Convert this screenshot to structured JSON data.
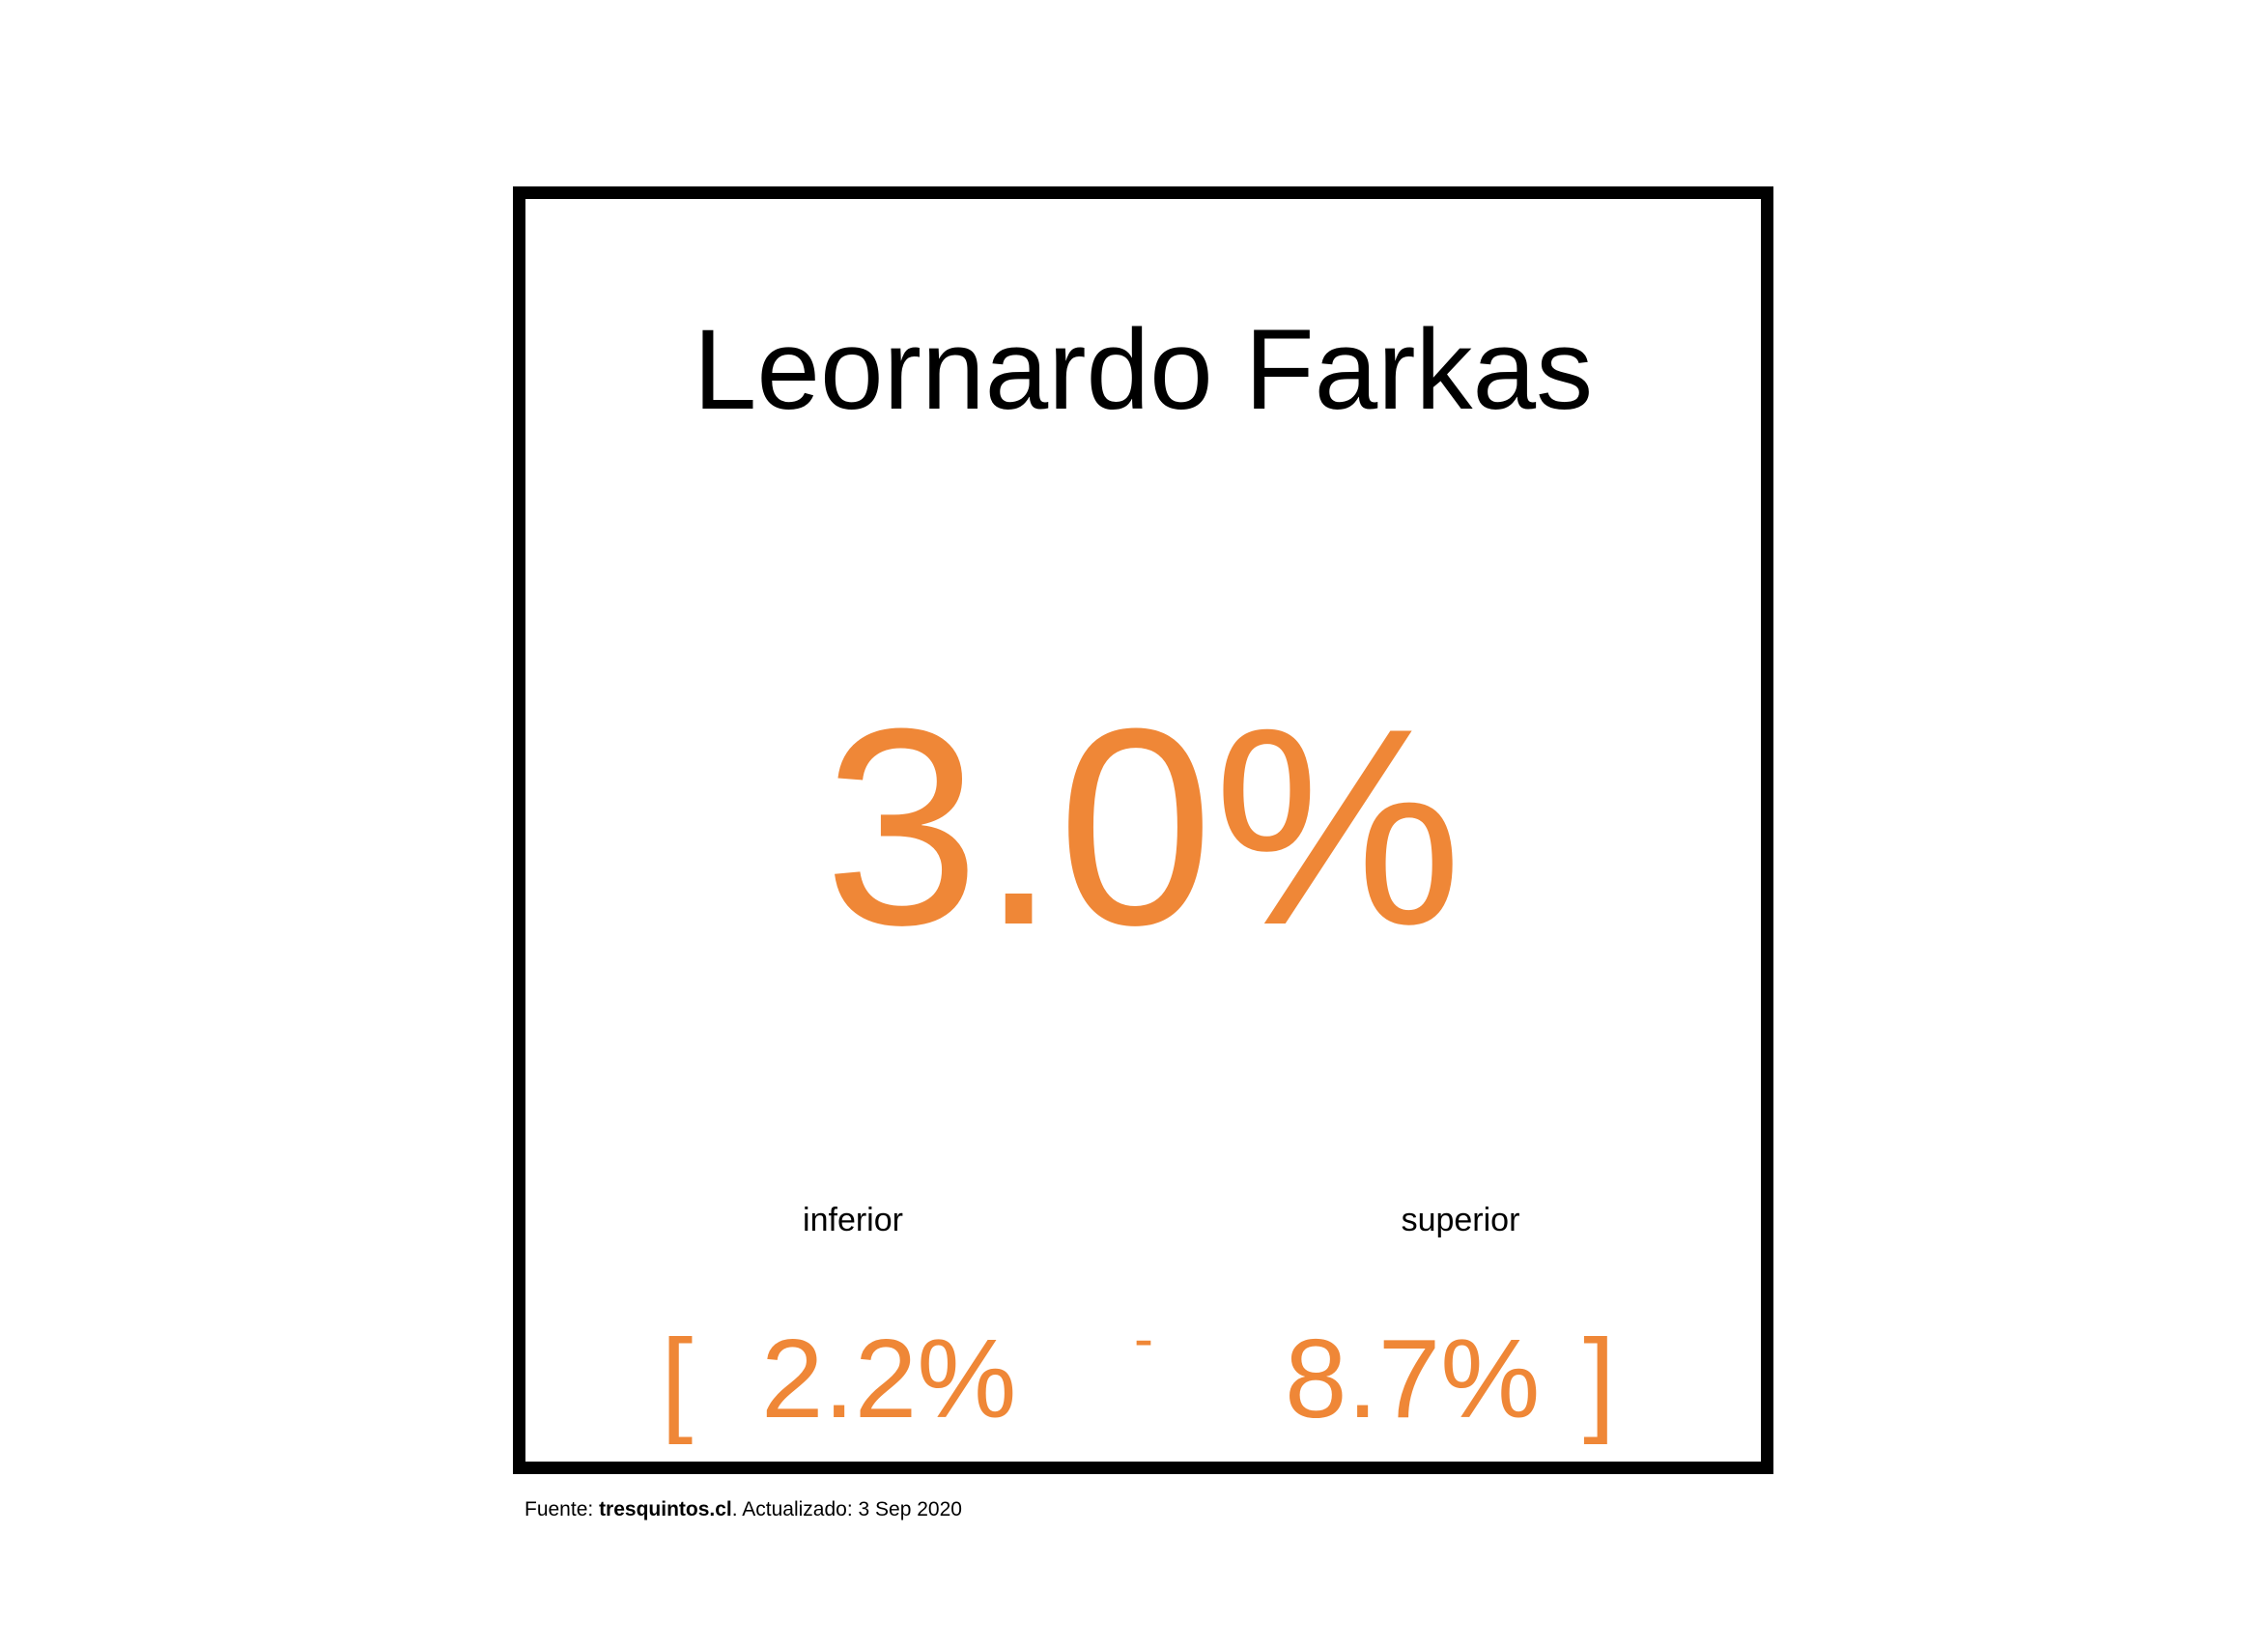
{
  "card": {
    "title": "Leornardo Farkas",
    "main_value": "3.0%",
    "range": {
      "lower_label": "inferior",
      "upper_label": "superior",
      "open_bracket": "[",
      "lower_value": "2.2%",
      "separator": "-",
      "upper_value": "8.7%",
      "close_bracket": "]"
    }
  },
  "footer": {
    "source_prefix": "Fuente: ",
    "source_site": "tresquintos.cl",
    "source_suffix": ". Actualizado: 3 Sep 2020"
  },
  "colors": {
    "accent": "#ef8737",
    "text": "#000000",
    "border": "#000000",
    "background": "#ffffff"
  }
}
